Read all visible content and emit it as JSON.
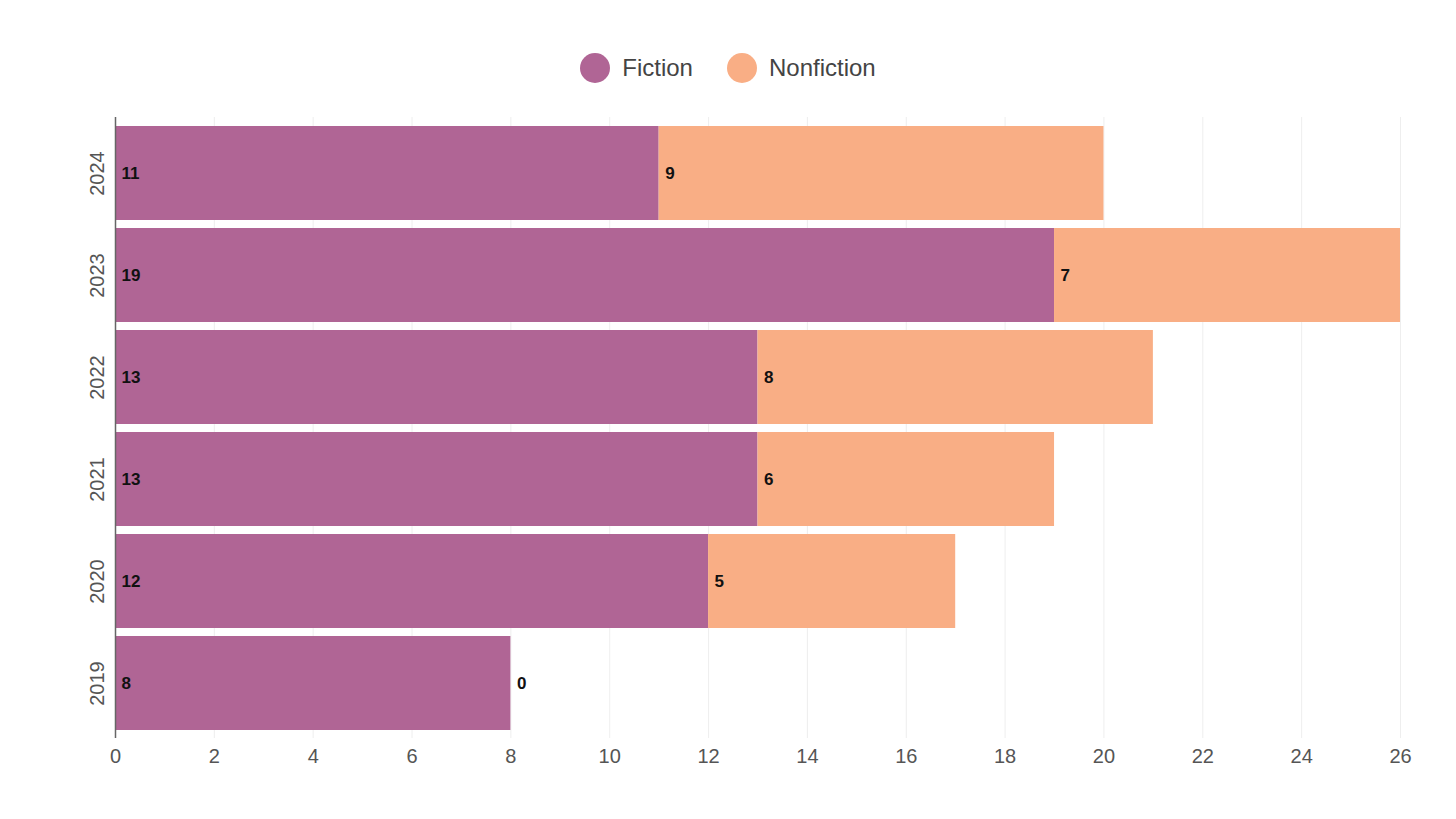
{
  "chart_data": {
    "type": "bar",
    "orientation": "horizontal",
    "stacked": true,
    "data_labels": true,
    "grid": true,
    "legend": "top",
    "categories": [
      "2024",
      "2023",
      "2022",
      "2021",
      "2020",
      "2019"
    ],
    "series": [
      {
        "name": "Fiction",
        "color": "#b06595",
        "values": [
          11,
          19,
          13,
          13,
          12,
          8
        ]
      },
      {
        "name": "Nonfiction",
        "color": "#f9ae85",
        "values": [
          9,
          7,
          8,
          6,
          5,
          0
        ]
      }
    ],
    "xlim": [
      0,
      26
    ],
    "xticks": [
      0,
      2,
      4,
      6,
      8,
      10,
      12,
      14,
      16,
      18,
      20,
      22,
      24,
      26
    ]
  }
}
